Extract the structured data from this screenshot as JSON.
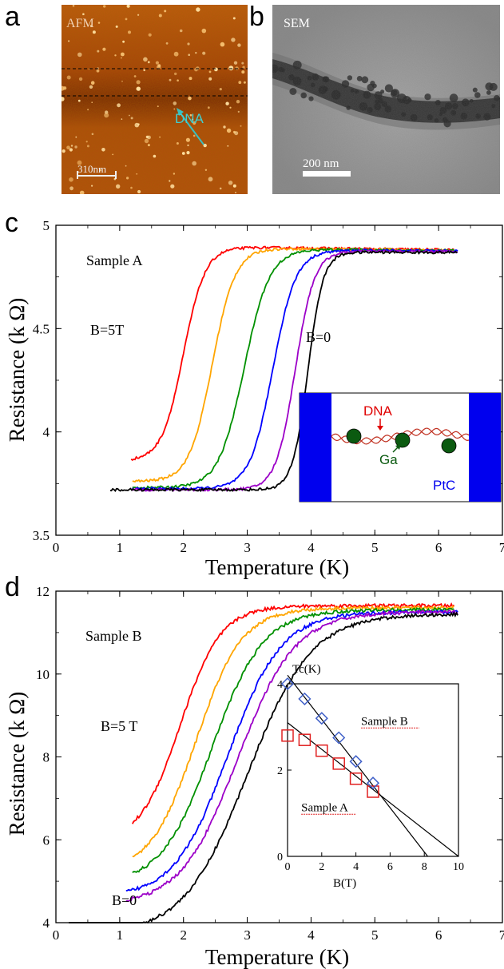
{
  "panels": {
    "a": {
      "letter": "a",
      "label": "AFM",
      "annotation": "DNA",
      "scale_bar": "310nm"
    },
    "b": {
      "letter": "b",
      "label": "SEM",
      "scale_bar": "200 nm"
    },
    "c": {
      "letter": "c"
    },
    "d": {
      "letter": "d"
    }
  },
  "colors": {
    "series": [
      "#ff0000",
      "#ffa500",
      "#009000",
      "#0000ff",
      "#9c00c8",
      "#000000"
    ],
    "inset_sample_a": "#e02020",
    "inset_sample_b": "#4060c8",
    "electrode": "#0000ee",
    "ga": "#0b5a10"
  },
  "chart_data": [
    {
      "type": "line",
      "panel": "c",
      "xlabel": "Temperature (K)",
      "ylabel": "Resistance (k Ω)",
      "xlim": [
        0,
        7
      ],
      "ylim": [
        3.5,
        5
      ],
      "xticks": [
        "0",
        "1",
        "2",
        "3",
        "4",
        "5",
        "6",
        "7"
      ],
      "yticks": [
        "3.5",
        "4",
        "4.5",
        "5"
      ],
      "annotations": {
        "sample": "Sample A",
        "high_field": "B=5T",
        "zero_field": "B=0"
      },
      "series": [
        {
          "color": "#ff0000",
          "tc": 2.0,
          "width": 0.17,
          "low": 3.86,
          "hi": 4.895,
          "hiSlope": -0.004,
          "x0": 1.18,
          "x1": 6.25
        },
        {
          "color": "#ffa500",
          "tc": 2.45,
          "width": 0.18,
          "low": 3.76,
          "hi": 4.89,
          "hiSlope": -0.004,
          "x0": 1.2,
          "x1": 6.25
        },
        {
          "color": "#009000",
          "tc": 2.95,
          "width": 0.2,
          "low": 3.73,
          "hi": 4.885,
          "hiSlope": -0.003,
          "x0": 1.2,
          "x1": 6.25
        },
        {
          "color": "#0000ff",
          "tc": 3.4,
          "width": 0.18,
          "low": 3.725,
          "hi": 4.88,
          "hiSlope": -0.002,
          "x0": 1.2,
          "x1": 6.3
        },
        {
          "color": "#9c00c8",
          "tc": 3.75,
          "width": 0.15,
          "low": 3.72,
          "hi": 4.875,
          "hiSlope": -0.001,
          "x0": 1.2,
          "x1": 6.3
        },
        {
          "color": "#000000",
          "tc": 3.95,
          "width": 0.12,
          "low": 3.72,
          "hi": 4.87,
          "hiSlope": -0.001,
          "x0": 0.85,
          "x1": 6.3
        }
      ],
      "inset": {
        "dna": "DNA",
        "ga": "Ga",
        "ptc": "PtC"
      }
    },
    {
      "type": "line",
      "panel": "d",
      "xlabel": "Temperature (K)",
      "ylabel": "Resistance (k Ω)",
      "xlim": [
        0,
        7
      ],
      "ylim": [
        4,
        12
      ],
      "xticks": [
        "0",
        "1",
        "2",
        "3",
        "4",
        "5",
        "6",
        "7"
      ],
      "yticks": [
        "4",
        "6",
        "8",
        "10",
        "12"
      ],
      "annotations": {
        "sample": "Sample B",
        "high_field": "B=5 T",
        "zero_field": "B=0"
      },
      "series": [
        {
          "color": "#ff0000",
          "tc": 1.95,
          "width": 0.32,
          "low": 5.9,
          "hi": 11.65,
          "x0": 1.2,
          "x1": 6.25
        },
        {
          "color": "#ffa500",
          "tc": 2.2,
          "width": 0.36,
          "low": 5.2,
          "hi": 11.6,
          "x0": 1.2,
          "x1": 6.25
        },
        {
          "color": "#009000",
          "tc": 2.45,
          "width": 0.4,
          "low": 4.9,
          "hi": 11.55,
          "x0": 1.2,
          "x1": 6.25
        },
        {
          "color": "#0000ff",
          "tc": 2.7,
          "width": 0.42,
          "low": 4.6,
          "hi": 11.5,
          "x0": 1.1,
          "x1": 6.3
        },
        {
          "color": "#9c00c8",
          "tc": 2.85,
          "width": 0.45,
          "low": 4.4,
          "hi": 11.5,
          "x0": 1.1,
          "x1": 6.3
        },
        {
          "color": "#000000",
          "tc": 3.0,
          "width": 0.5,
          "low": 3.7,
          "hi": 11.45,
          "x0": 0.2,
          "x1": 6.3
        }
      ],
      "inset": {
        "title": "Tc(K)",
        "xlabel": "B(T)",
        "xlim": [
          0,
          10
        ],
        "ylim": [
          0,
          4
        ],
        "xticks": [
          "0",
          "2",
          "4",
          "6",
          "8",
          "10"
        ],
        "yticks": [
          "0",
          "2",
          "4"
        ],
        "series": [
          {
            "name": "Sample A",
            "marker": "square",
            "x": [
              0,
              1,
              2,
              3,
              4,
              5
            ],
            "y": [
              2.8,
              2.7,
              2.45,
              2.15,
              1.8,
              1.5
            ],
            "fit": [
              [
                0,
                3.1
              ],
              [
                10,
                0
              ]
            ]
          },
          {
            "name": "Sample B",
            "marker": "diamond",
            "x": [
              0,
              1,
              2,
              3,
              4,
              5
            ],
            "y": [
              4.0,
              3.65,
              3.2,
              2.75,
              2.2,
              1.7
            ],
            "fit": [
              [
                0,
                4.2
              ],
              [
                8.2,
                0
              ]
            ]
          }
        ]
      }
    }
  ]
}
